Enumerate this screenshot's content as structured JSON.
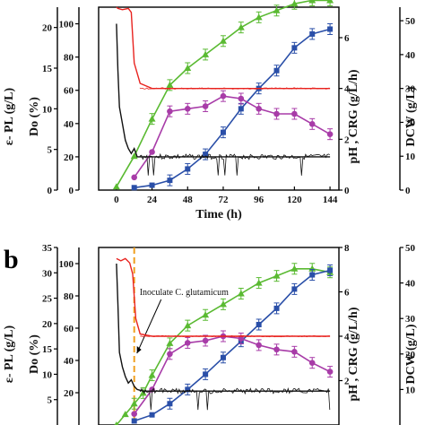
{
  "chart_data": [
    {
      "type": "line",
      "panel_label": "",
      "xlabel": "Time (h)",
      "x_ticks": [
        "0",
        "24",
        "48",
        "72",
        "96",
        "120",
        "144"
      ],
      "xlim": [
        -12,
        150
      ],
      "axes": {
        "epl": {
          "label": "ε- PL (g/L)",
          "ticks": [
            "0",
            "5",
            "10",
            "15",
            "20"
          ],
          "lim": [
            0,
            22.5
          ]
        },
        "do": {
          "label": "Do (%)",
          "ticks": [
            "0",
            "20",
            "40",
            "60",
            "80",
            "100"
          ],
          "lim": [
            0,
            110
          ]
        },
        "right": {
          "label": "pH , CRG (g/L/h)",
          "ticks": [
            "0",
            "2",
            "4",
            "6"
          ],
          "lim": [
            0,
            7.2
          ]
        },
        "dcw": {
          "label": "DCW (g/L)",
          "ticks": [
            "0",
            "10",
            "20",
            "30",
            "40",
            "50"
          ],
          "lim": [
            0,
            54
          ]
        }
      },
      "series": [
        {
          "role": "dcw",
          "axis": "dcw",
          "color": "#5aba32",
          "marker": "triangle",
          "x": [
            0,
            12,
            24,
            36,
            48,
            60,
            72,
            84,
            96,
            108,
            120,
            132,
            144
          ],
          "y": [
            1,
            10,
            21,
            31,
            36,
            40,
            44,
            48,
            51,
            53,
            55,
            56,
            56
          ]
        },
        {
          "role": "epl",
          "axis": "epl",
          "color": "#2a4fa8",
          "marker": "square",
          "x": [
            12,
            24,
            36,
            48,
            60,
            72,
            84,
            96,
            108,
            120,
            132,
            144
          ],
          "y": [
            0.3,
            0.6,
            1.2,
            2.6,
            4.4,
            7.1,
            10.0,
            12.5,
            14.7,
            17.5,
            19.2,
            19.8
          ]
        },
        {
          "role": "crg",
          "axis": "right",
          "color": "#a83ca8",
          "marker": "circle",
          "x": [
            12,
            24,
            36,
            48,
            60,
            72,
            84,
            96,
            108,
            120,
            132,
            144
          ],
          "y": [
            0.5,
            1.5,
            3.1,
            3.2,
            3.3,
            3.7,
            3.6,
            3.2,
            3.0,
            3.0,
            2.6,
            2.2
          ]
        },
        {
          "role": "ph",
          "axis": "right",
          "color": "#e8231f",
          "marker": "none",
          "x": [
            0,
            1,
            4,
            8,
            10,
            12,
            16,
            24,
            48,
            72,
            96,
            120,
            144
          ],
          "y": [
            7.2,
            7.15,
            7.1,
            7.15,
            7.0,
            5.0,
            4.2,
            4.0,
            4.0,
            4.0,
            4.0,
            4.0,
            4.0
          ]
        },
        {
          "role": "do",
          "axis": "do",
          "color": "#111111",
          "marker": "none",
          "x": [
            0,
            1,
            2,
            4,
            6,
            8,
            10,
            12,
            14,
            18,
            24,
            48,
            72,
            96,
            120,
            144
          ],
          "y": [
            100,
            72,
            50,
            40,
            30,
            25,
            22,
            25,
            20,
            20,
            20,
            20,
            20,
            20,
            20,
            20
          ]
        }
      ]
    },
    {
      "type": "line",
      "panel_label": "b",
      "xlabel": "",
      "x_ticks": [],
      "xlim": [
        -12,
        150
      ],
      "annotation": "Inoculate C. glutamicum",
      "axes": {
        "epl": {
          "label": "ε- PL (g/L)",
          "ticks": [
            "5",
            "10",
            "15",
            "20",
            "25",
            "30",
            "35"
          ],
          "lim": [
            0,
            35
          ]
        },
        "do": {
          "label": "Do (%)",
          "ticks": [
            "20",
            "40",
            "60",
            "80",
            "100"
          ],
          "lim": [
            0,
            110
          ]
        },
        "right": {
          "label": "pH , CRG (g/L/h)",
          "ticks": [
            "2",
            "4",
            "6",
            "8"
          ],
          "lim": [
            0,
            8
          ]
        },
        "dcw": {
          "label": "DCW (g/L)",
          "ticks": [
            "10",
            "20",
            "30",
            "40",
            "50"
          ],
          "lim": [
            0,
            50
          ]
        }
      },
      "series": [
        {
          "role": "dcw",
          "axis": "dcw",
          "color": "#5aba32",
          "marker": "triangle",
          "x": [
            0,
            6,
            12,
            18,
            24,
            36,
            48,
            60,
            72,
            84,
            96,
            108,
            120,
            132,
            144
          ],
          "y": [
            0,
            3,
            6,
            9,
            14,
            23,
            28,
            31,
            34,
            37,
            40,
            42,
            44,
            44,
            43
          ]
        },
        {
          "role": "epl",
          "axis": "epl",
          "color": "#2a4fa8",
          "marker": "square",
          "x": [
            12,
            24,
            36,
            48,
            60,
            72,
            84,
            96,
            108,
            120,
            132,
            144
          ],
          "y": [
            0.8,
            2.0,
            4.2,
            7.0,
            10.0,
            13.3,
            16.5,
            19.8,
            23.0,
            26.8,
            29.6,
            30.5
          ]
        },
        {
          "role": "crg",
          "axis": "right",
          "color": "#a83ca8",
          "marker": "circle",
          "x": [
            12,
            24,
            36,
            48,
            60,
            72,
            84,
            96,
            108,
            120,
            132,
            144
          ],
          "y": [
            0.5,
            1.6,
            3.2,
            3.7,
            3.8,
            4.0,
            3.9,
            3.6,
            3.4,
            3.3,
            2.8,
            2.4
          ]
        },
        {
          "role": "ph",
          "axis": "right",
          "color": "#e8231f",
          "marker": "none",
          "x": [
            0,
            3,
            6,
            9,
            11,
            13,
            16,
            24,
            48,
            72,
            96,
            120,
            144
          ],
          "y": [
            7.5,
            7.4,
            7.5,
            7.3,
            6.8,
            4.8,
            4.1,
            4.0,
            4.0,
            4.0,
            4.0,
            4.0,
            4.0
          ]
        },
        {
          "role": "do",
          "axis": "do",
          "color": "#111111",
          "marker": "none",
          "x": [
            0,
            1,
            2,
            4,
            6,
            8,
            10,
            12,
            14,
            18,
            24,
            48,
            72,
            96,
            120,
            144
          ],
          "y": [
            100,
            75,
            45,
            36,
            30,
            26,
            28,
            24,
            22,
            21,
            21,
            21,
            21,
            21,
            21,
            21
          ]
        }
      ]
    }
  ]
}
